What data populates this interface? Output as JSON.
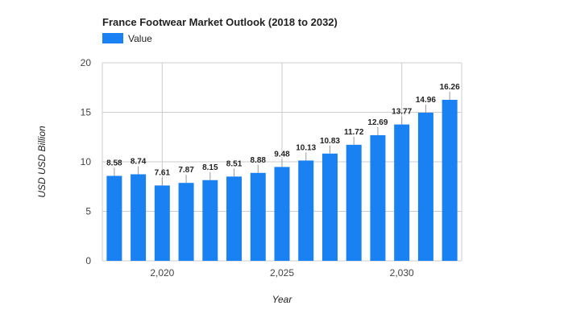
{
  "chart_data": {
    "type": "bar",
    "title": "France Footwear Market Outlook (2018 to 2032)",
    "xlabel": "Year",
    "ylabel": "USD USD Billion",
    "x": [
      2018,
      2019,
      2020,
      2021,
      2022,
      2023,
      2024,
      2025,
      2026,
      2027,
      2028,
      2029,
      2030,
      2031,
      2032
    ],
    "series": [
      {
        "name": "Value",
        "color": "#1a81f2",
        "values": [
          8.58,
          8.74,
          7.61,
          7.87,
          8.15,
          8.51,
          8.88,
          9.48,
          10.13,
          10.83,
          11.72,
          12.69,
          13.77,
          14.96,
          16.26
        ]
      }
    ],
    "ylim": [
      0,
      20
    ],
    "yticks": [
      "0",
      "5",
      "10",
      "15",
      "20"
    ],
    "xtick_values": [
      2020,
      2025,
      2030
    ],
    "xticks": [
      "2,020",
      "2,025",
      "2,030"
    ],
    "grid": true,
    "legend_position": "top-left"
  }
}
